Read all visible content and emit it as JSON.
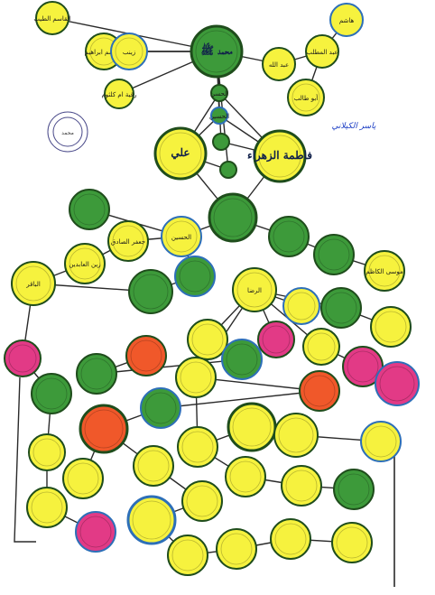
{
  "colors": {
    "yellow": "#f6f23e",
    "green": "#3d9a3a",
    "magenta": "#e23a86",
    "orange": "#f0582a",
    "blue_ring": "#2d6fb8",
    "line": "#2a2a2a"
  },
  "stamp": {
    "icon": "seal-stamp",
    "text": "محمد"
  },
  "signature": {
    "text": "ياسر الكيلاني"
  },
  "nodes": [
    {
      "label": "القاسم الطيب",
      "fill": "yellow"
    },
    {
      "label": "القاسم ابراهيم",
      "fill": "yellow"
    },
    {
      "label": "زينب",
      "fill": "yellow"
    },
    {
      "label": "رقية ام كلثوم",
      "fill": "yellow"
    },
    {
      "label": "محمد ﷺ",
      "fill": "green"
    },
    {
      "label": "عبد الله",
      "fill": "yellow"
    },
    {
      "label": "عبد المطلب",
      "fill": "yellow"
    },
    {
      "label": "هاشم",
      "fill": "yellow"
    },
    {
      "label": "أبو طالب",
      "fill": "yellow"
    },
    {
      "label": "فاطمة الزهراء",
      "fill": "yellow"
    },
    {
      "label": "علي",
      "fill": "yellow"
    },
    {
      "label": "الحسن",
      "fill": "green"
    },
    {
      "label": "الحسين",
      "fill": "green"
    },
    {
      "label": "",
      "fill": "green"
    },
    {
      "label": "",
      "fill": "green"
    },
    {
      "label": "",
      "fill": "green"
    },
    {
      "label": "",
      "fill": "green"
    },
    {
      "label": "الحسين",
      "fill": "yellow"
    },
    {
      "label": "جعفر الصادق",
      "fill": "yellow"
    },
    {
      "label": "زين العابدين",
      "fill": "yellow"
    },
    {
      "label": "الباقر",
      "fill": "yellow"
    },
    {
      "label": "",
      "fill": "green"
    },
    {
      "label": "",
      "fill": "green"
    },
    {
      "label": "",
      "fill": "green"
    },
    {
      "label": "",
      "fill": "green"
    },
    {
      "label": "موسى الكاظم",
      "fill": "yellow"
    },
    {
      "label": "الرضا",
      "fill": "yellow"
    },
    {
      "label": "",
      "fill": "yellow"
    },
    {
      "label": "",
      "fill": "green"
    },
    {
      "label": "",
      "fill": "yellow"
    },
    {
      "label": "",
      "fill": "magenta"
    },
    {
      "label": "",
      "fill": "yellow"
    },
    {
      "label": "",
      "fill": "green"
    },
    {
      "label": "",
      "fill": "green"
    },
    {
      "label": "",
      "fill": "orange"
    },
    {
      "label": "",
      "fill": "yellow"
    },
    {
      "label": "",
      "fill": "magenta"
    },
    {
      "label": "",
      "fill": "magenta"
    },
    {
      "label": "",
      "fill": "magenta"
    },
    {
      "label": "",
      "fill": "green"
    },
    {
      "label": "",
      "fill": "yellow"
    },
    {
      "label": "",
      "fill": "orange"
    },
    {
      "label": "",
      "fill": "green"
    },
    {
      "label": "",
      "fill": "orange"
    },
    {
      "label": "",
      "fill": "yellow"
    },
    {
      "label": "",
      "fill": "yellow"
    },
    {
      "label": "",
      "fill": "yellow"
    },
    {
      "label": "",
      "fill": "magenta"
    },
    {
      "label": "",
      "fill": "yellow"
    },
    {
      "label": "",
      "fill": "yellow"
    },
    {
      "label": "",
      "fill": "yellow"
    },
    {
      "label": "",
      "fill": "yellow"
    },
    {
      "label": "",
      "fill": "yellow"
    },
    {
      "label": "",
      "fill": "yellow"
    },
    {
      "label": "",
      "fill": "yellow"
    },
    {
      "label": "",
      "fill": "green"
    },
    {
      "label": "",
      "fill": "yellow"
    },
    {
      "label": "",
      "fill": "yellow"
    },
    {
      "label": "",
      "fill": "yellow"
    },
    {
      "label": "",
      "fill": "yellow"
    },
    {
      "label": "",
      "fill": "yellow"
    },
    {
      "label": "",
      "fill": "yellow"
    },
    {
      "label": "",
      "fill": "magenta"
    },
    {
      "label": "",
      "fill": "magenta"
    },
    {
      "label": "",
      "fill": "yellow"
    },
    {
      "label": "",
      "fill": "yellow"
    },
    {
      "label": "",
      "fill": "yellow"
    },
    {
      "label": "",
      "fill": "yellow"
    },
    {
      "label": "",
      "fill": "yellow"
    }
  ]
}
